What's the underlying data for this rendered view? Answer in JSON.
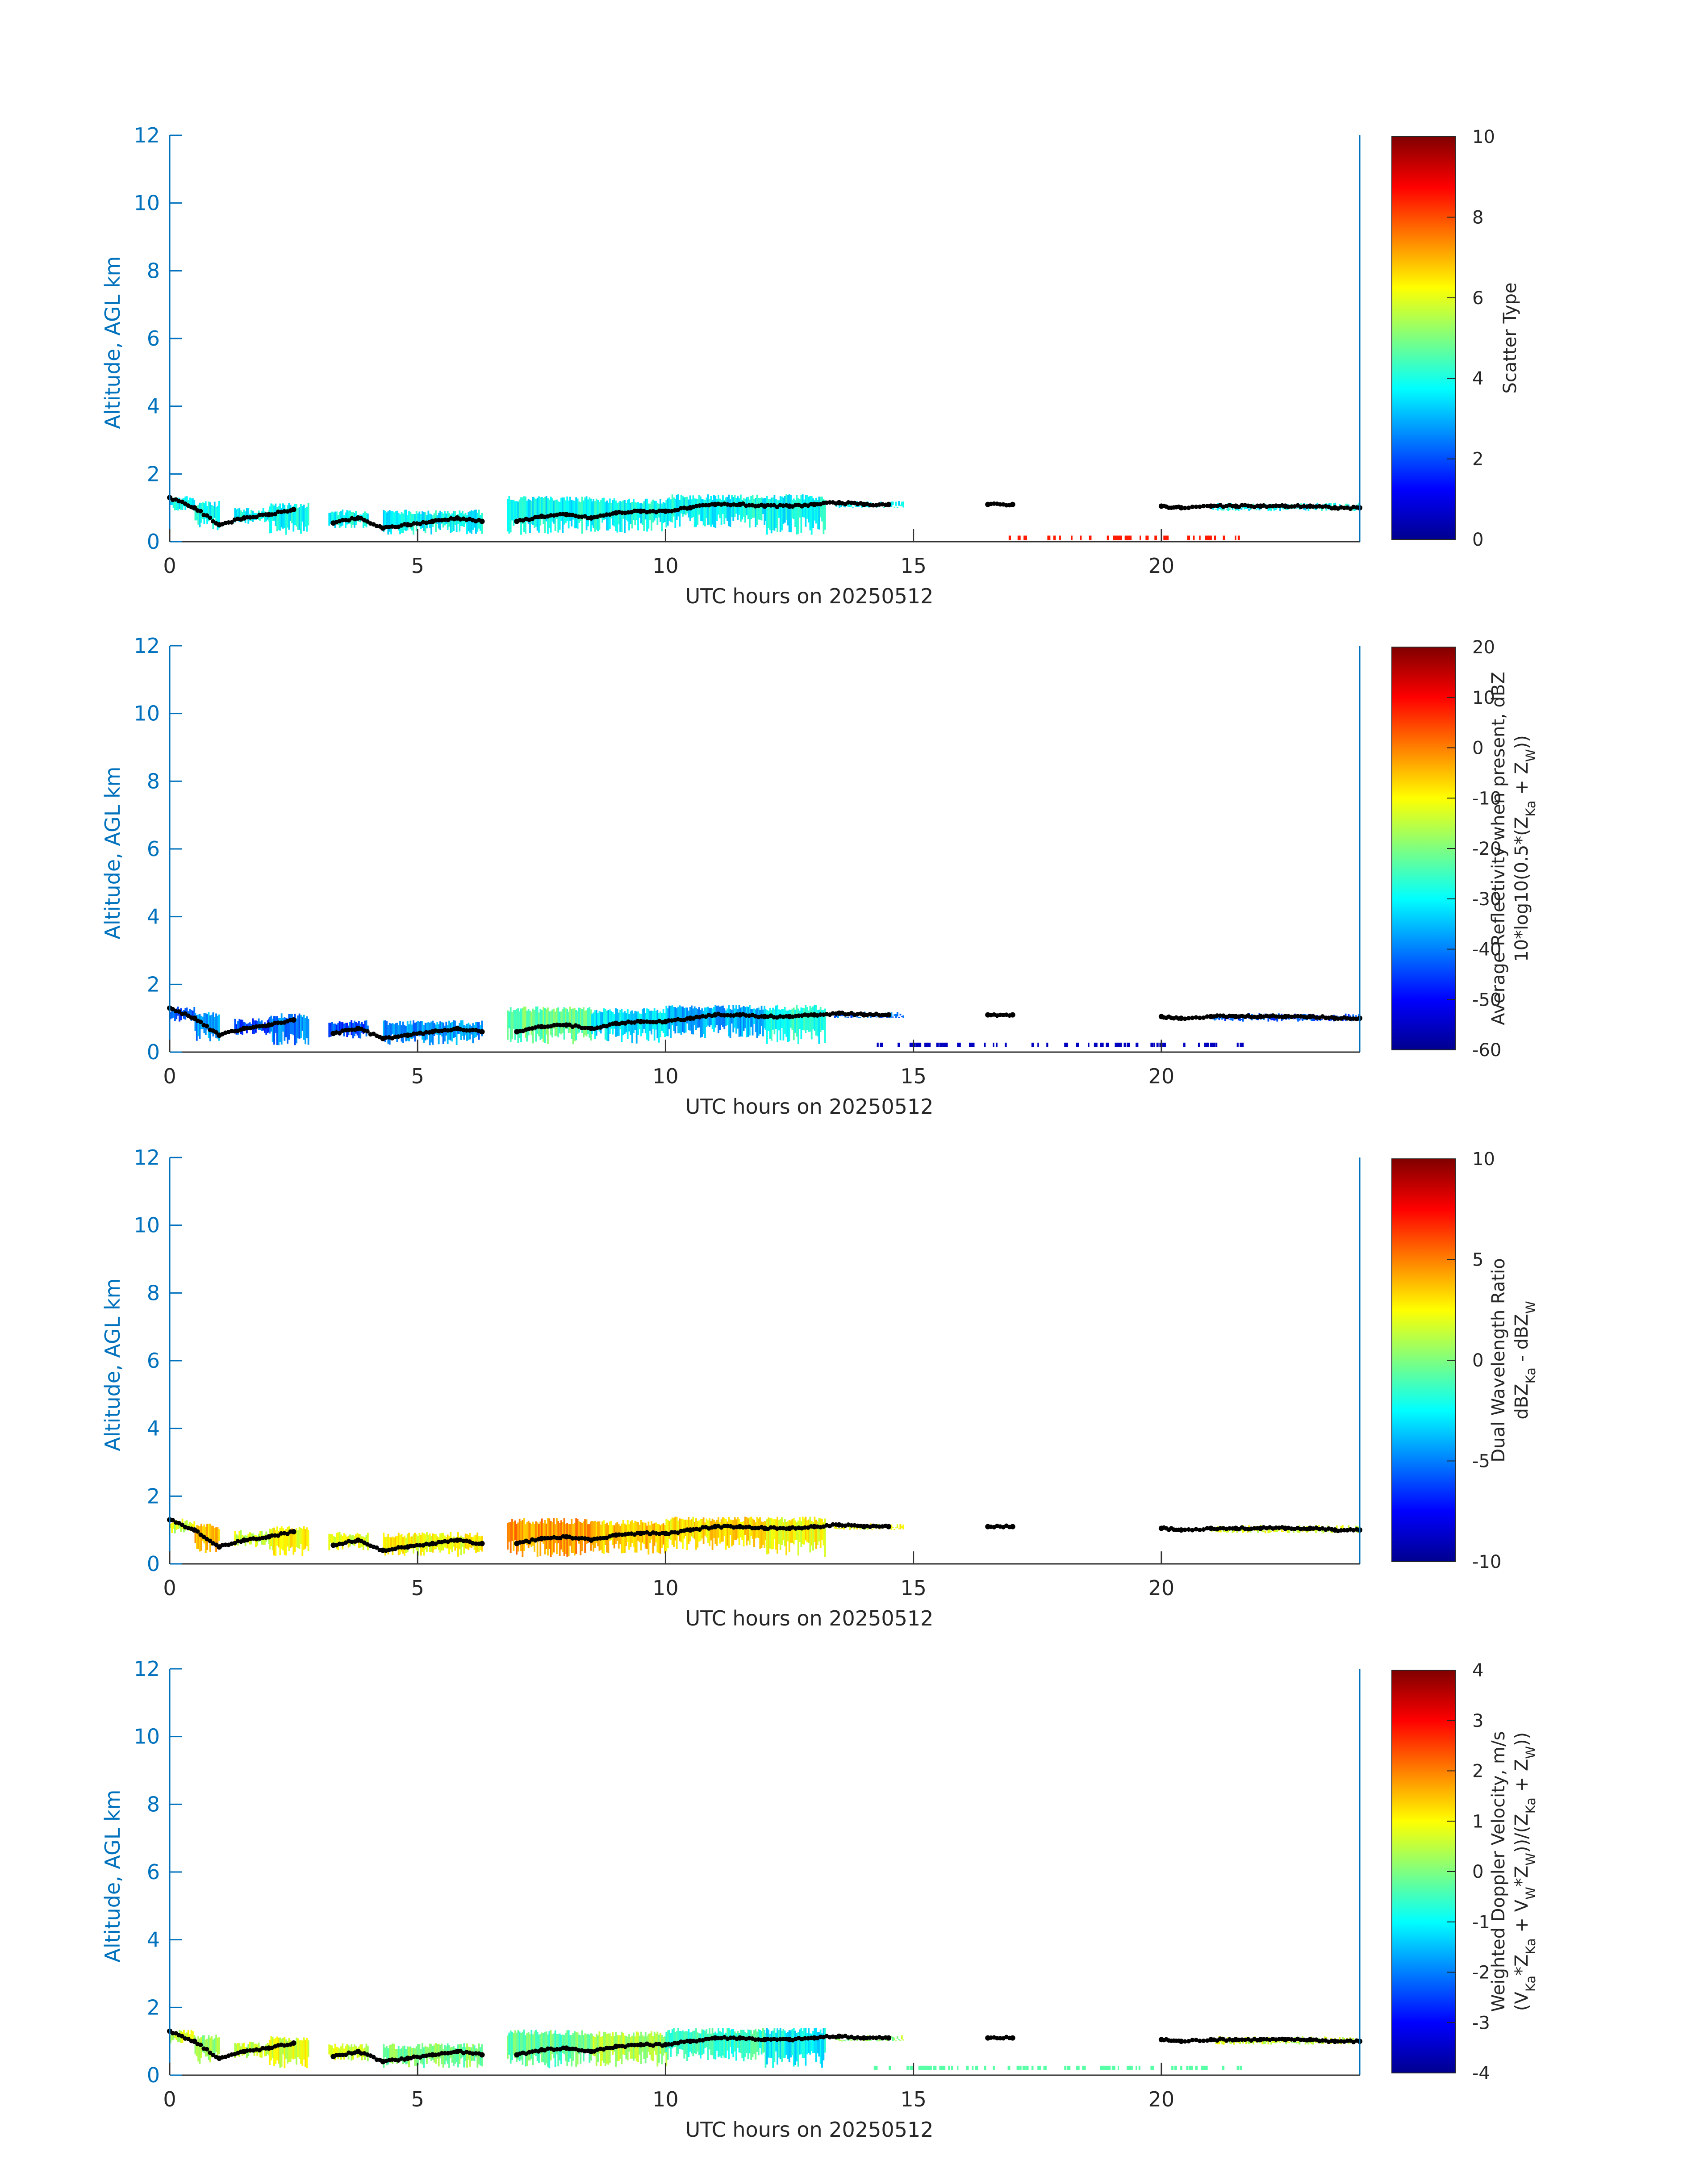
{
  "figure": {
    "xlabel": "UTC hours on 20250512",
    "ylabel": "Altitude, AGL km"
  },
  "chart_data": [
    {
      "type": "heatmap",
      "title": "",
      "xlabel": "UTC hours on 20250512",
      "ylabel": "Altitude, AGL km",
      "xlim": [
        0,
        24
      ],
      "ylim": [
        0,
        12
      ],
      "xticks": [
        0,
        5,
        10,
        15,
        20
      ],
      "yticks": [
        0,
        2,
        4,
        6,
        8,
        10,
        12
      ],
      "grid": false,
      "colorbar": {
        "label_lines": [
          "Scatter Type"
        ],
        "range": [
          0,
          10
        ],
        "ticks": [
          0,
          2,
          4,
          6,
          8,
          10
        ],
        "colormap": "jet"
      },
      "cloud_segments": [
        {
          "x": [
            0.0,
            0.5
          ],
          "top": 1.35,
          "base": 0.9,
          "value": 3.8
        },
        {
          "x": [
            0.5,
            1.0
          ],
          "top": 1.2,
          "base": 0.3,
          "value": 3.8
        },
        {
          "x": [
            1.3,
            2.0
          ],
          "top": 1.0,
          "base": 0.5,
          "value": 3.8
        },
        {
          "x": [
            2.0,
            2.8
          ],
          "top": 1.15,
          "base": 0.2,
          "value": 3.8
        },
        {
          "x": [
            3.2,
            4.0
          ],
          "top": 0.95,
          "base": 0.4,
          "value": 3.8
        },
        {
          "x": [
            4.3,
            6.3
          ],
          "top": 0.95,
          "base": 0.2,
          "value": 3.8
        },
        {
          "x": [
            6.8,
            8.5
          ],
          "top": 1.35,
          "base": 0.2,
          "value": 3.8
        },
        {
          "x": [
            8.5,
            10.0
          ],
          "top": 1.3,
          "base": 0.25,
          "value": 3.8
        },
        {
          "x": [
            10.0,
            12.0
          ],
          "top": 1.4,
          "base": 0.4,
          "value": 3.8
        },
        {
          "x": [
            12.0,
            13.2
          ],
          "top": 1.4,
          "base": 0.2,
          "value": 3.8
        },
        {
          "x": [
            13.4,
            14.8
          ],
          "top": 1.2,
          "base": 1.0,
          "value": 3.8
        },
        {
          "x": [
            21.0,
            24.0
          ],
          "top": 1.15,
          "base": 0.9,
          "value": 3.8
        }
      ],
      "surface_clutter": {
        "x": [
          16.8,
          21.6
        ],
        "altitude": 0.1,
        "value": 8.5
      },
      "cloud_base_points": {
        "x": [
          0.0,
          0.5,
          1.0,
          1.5,
          2.0,
          2.5,
          3.3,
          3.8,
          4.3,
          4.8,
          5.3,
          5.8,
          6.3,
          7.0,
          7.5,
          8.0,
          8.5,
          9.0,
          9.5,
          10.0,
          10.5,
          11.0,
          11.5,
          12.0,
          12.5,
          13.0,
          13.5,
          14.0,
          14.5,
          16.5,
          17.0,
          20.0,
          20.4,
          21.0,
          21.5,
          22.0,
          22.5,
          23.0,
          23.5,
          24.0
        ],
        "altitude": [
          1.3,
          1.0,
          0.5,
          0.7,
          0.8,
          0.95,
          0.55,
          0.7,
          0.4,
          0.5,
          0.6,
          0.7,
          0.6,
          0.6,
          0.75,
          0.8,
          0.7,
          0.85,
          0.9,
          0.9,
          1.0,
          1.1,
          1.1,
          1.05,
          1.05,
          1.1,
          1.15,
          1.1,
          1.1,
          1.1,
          1.1,
          1.05,
          1.0,
          1.05,
          1.05,
          1.05,
          1.05,
          1.05,
          1.0,
          1.0
        ]
      }
    },
    {
      "type": "heatmap",
      "title": "",
      "xlabel": "UTC hours on 20250512",
      "ylabel": "Altitude, AGL km",
      "xlim": [
        0,
        24
      ],
      "ylim": [
        0,
        12
      ],
      "xticks": [
        0,
        5,
        10,
        15,
        20
      ],
      "yticks": [
        0,
        2,
        4,
        6,
        8,
        10,
        12
      ],
      "grid": false,
      "colorbar": {
        "label_lines": [
          "Average Reflectivity when present, dBZ",
          "10*log10(0.5*(Z_Ka + Z_W))"
        ],
        "range": [
          -60,
          20
        ],
        "ticks": [
          -60,
          -50,
          -40,
          -30,
          -20,
          -10,
          0,
          10,
          20
        ],
        "colormap": "jet"
      },
      "cloud_segments": [
        {
          "x": [
            0.0,
            0.5
          ],
          "top": 1.35,
          "base": 0.9,
          "value": -42
        },
        {
          "x": [
            0.5,
            1.0
          ],
          "top": 1.2,
          "base": 0.3,
          "value": -38
        },
        {
          "x": [
            1.3,
            2.0
          ],
          "top": 1.0,
          "base": 0.5,
          "value": -44
        },
        {
          "x": [
            2.0,
            2.8
          ],
          "top": 1.15,
          "base": 0.2,
          "value": -40
        },
        {
          "x": [
            3.2,
            4.0
          ],
          "top": 0.95,
          "base": 0.4,
          "value": -44
        },
        {
          "x": [
            4.3,
            6.3
          ],
          "top": 0.95,
          "base": 0.2,
          "value": -38
        },
        {
          "x": [
            6.8,
            8.5
          ],
          "top": 1.35,
          "base": 0.2,
          "value": -22
        },
        {
          "x": [
            8.5,
            10.0
          ],
          "top": 1.3,
          "base": 0.25,
          "value": -32
        },
        {
          "x": [
            10.0,
            12.0
          ],
          "top": 1.4,
          "base": 0.4,
          "value": -36
        },
        {
          "x": [
            12.0,
            13.2
          ],
          "top": 1.4,
          "base": 0.2,
          "value": -28
        },
        {
          "x": [
            13.4,
            14.8
          ],
          "top": 1.2,
          "base": 1.0,
          "value": -42
        },
        {
          "x": [
            21.0,
            24.0
          ],
          "top": 1.15,
          "base": 0.9,
          "value": -44
        }
      ],
      "surface_clutter": {
        "x": [
          14.2,
          21.6
        ],
        "altitude": 0.2,
        "value": -55
      },
      "cloud_base_points": {
        "x": [
          0.0,
          0.5,
          1.0,
          1.5,
          2.0,
          2.5,
          3.3,
          3.8,
          4.3,
          4.8,
          5.3,
          5.8,
          6.3,
          7.0,
          7.5,
          8.0,
          8.5,
          9.0,
          9.5,
          10.0,
          10.5,
          11.0,
          11.5,
          12.0,
          12.5,
          13.0,
          13.5,
          14.0,
          14.5,
          16.5,
          17.0,
          20.0,
          20.4,
          21.0,
          21.5,
          22.0,
          22.5,
          23.0,
          23.5,
          24.0
        ],
        "altitude": [
          1.3,
          1.0,
          0.5,
          0.7,
          0.8,
          0.95,
          0.55,
          0.7,
          0.4,
          0.5,
          0.6,
          0.7,
          0.6,
          0.6,
          0.75,
          0.8,
          0.7,
          0.85,
          0.9,
          0.9,
          1.0,
          1.1,
          1.1,
          1.05,
          1.05,
          1.1,
          1.15,
          1.1,
          1.1,
          1.1,
          1.1,
          1.05,
          1.0,
          1.05,
          1.05,
          1.05,
          1.05,
          1.05,
          1.0,
          1.0
        ]
      }
    },
    {
      "type": "heatmap",
      "title": "",
      "xlabel": "UTC hours on 20250512",
      "ylabel": "Altitude, AGL km",
      "xlim": [
        0,
        24
      ],
      "ylim": [
        0,
        12
      ],
      "xticks": [
        0,
        5,
        10,
        15,
        20
      ],
      "yticks": [
        0,
        2,
        4,
        6,
        8,
        10,
        12
      ],
      "grid": false,
      "colorbar": {
        "label_lines": [
          "Dual Wavelength Ratio",
          "dBZ_Ka - dBZ_W"
        ],
        "range": [
          -10,
          10
        ],
        "ticks": [
          -10,
          -5,
          0,
          5,
          10
        ],
        "colormap": "jet"
      },
      "cloud_segments": [
        {
          "x": [
            0.0,
            0.5
          ],
          "top": 1.35,
          "base": 0.9,
          "value": 1.5
        },
        {
          "x": [
            0.5,
            1.0
          ],
          "top": 1.2,
          "base": 0.3,
          "value": 3.5
        },
        {
          "x": [
            1.3,
            2.0
          ],
          "top": 1.0,
          "base": 0.5,
          "value": 1.5
        },
        {
          "x": [
            2.0,
            2.8
          ],
          "top": 1.15,
          "base": 0.2,
          "value": 2.5
        },
        {
          "x": [
            3.2,
            4.0
          ],
          "top": 0.95,
          "base": 0.4,
          "value": 2.0
        },
        {
          "x": [
            4.3,
            6.3
          ],
          "top": 0.95,
          "base": 0.2,
          "value": 2.5
        },
        {
          "x": [
            6.8,
            8.5
          ],
          "top": 1.35,
          "base": 0.2,
          "value": 4.5
        },
        {
          "x": [
            8.5,
            10.0
          ],
          "top": 1.3,
          "base": 0.25,
          "value": 3.5
        },
        {
          "x": [
            10.0,
            12.0
          ],
          "top": 1.4,
          "base": 0.4,
          "value": 3.0
        },
        {
          "x": [
            12.0,
            13.2
          ],
          "top": 1.4,
          "base": 0.2,
          "value": 2.5
        },
        {
          "x": [
            13.4,
            14.8
          ],
          "top": 1.2,
          "base": 1.0,
          "value": 2.0
        },
        {
          "x": [
            21.0,
            24.0
          ],
          "top": 1.15,
          "base": 0.9,
          "value": 2.0
        }
      ],
      "cloud_base_points": {
        "x": [
          0.0,
          0.5,
          1.0,
          1.5,
          2.0,
          2.5,
          3.3,
          3.8,
          4.3,
          4.8,
          5.3,
          5.8,
          6.3,
          7.0,
          7.5,
          8.0,
          8.5,
          9.0,
          9.5,
          10.0,
          10.5,
          11.0,
          11.5,
          12.0,
          12.5,
          13.0,
          13.5,
          14.0,
          14.5,
          16.5,
          17.0,
          20.0,
          20.4,
          21.0,
          21.5,
          22.0,
          22.5,
          23.0,
          23.5,
          24.0
        ],
        "altitude": [
          1.3,
          1.0,
          0.5,
          0.7,
          0.8,
          0.95,
          0.55,
          0.7,
          0.4,
          0.5,
          0.6,
          0.7,
          0.6,
          0.6,
          0.75,
          0.8,
          0.7,
          0.85,
          0.9,
          0.9,
          1.0,
          1.1,
          1.1,
          1.05,
          1.05,
          1.1,
          1.15,
          1.1,
          1.1,
          1.1,
          1.1,
          1.05,
          1.0,
          1.05,
          1.05,
          1.05,
          1.05,
          1.05,
          1.0,
          1.0
        ]
      }
    },
    {
      "type": "heatmap",
      "title": "",
      "xlabel": "UTC hours on 20250512",
      "ylabel": "Altitude, AGL km",
      "xlim": [
        0,
        24
      ],
      "ylim": [
        0,
        12
      ],
      "xticks": [
        0,
        5,
        10,
        15,
        20
      ],
      "yticks": [
        0,
        2,
        4,
        6,
        8,
        10,
        12
      ],
      "grid": false,
      "colorbar": {
        "label_lines": [
          "Weighted Doppler Velocity, m/s",
          "(V_Ka*Z_Ka + V_W*Z_W))/(Z_Ka + Z_W))"
        ],
        "range": [
          -4,
          4
        ],
        "ticks": [
          -4,
          -3,
          -2,
          -1,
          0,
          1,
          2,
          3,
          4
        ],
        "colormap": "jet"
      },
      "cloud_segments": [
        {
          "x": [
            0.0,
            0.5
          ],
          "top": 1.35,
          "base": 0.9,
          "value": 0.6
        },
        {
          "x": [
            0.5,
            1.0
          ],
          "top": 1.2,
          "base": 0.3,
          "value": 0.2
        },
        {
          "x": [
            1.3,
            2.0
          ],
          "top": 1.0,
          "base": 0.5,
          "value": 0.6
        },
        {
          "x": [
            2.0,
            2.8
          ],
          "top": 1.15,
          "base": 0.2,
          "value": 0.8
        },
        {
          "x": [
            3.2,
            4.0
          ],
          "top": 0.95,
          "base": 0.4,
          "value": 0.6
        },
        {
          "x": [
            4.3,
            6.3
          ],
          "top": 0.95,
          "base": 0.2,
          "value": 0.0
        },
        {
          "x": [
            6.8,
            8.5
          ],
          "top": 1.35,
          "base": 0.2,
          "value": -0.2
        },
        {
          "x": [
            8.5,
            10.0
          ],
          "top": 1.3,
          "base": 0.25,
          "value": 0.4
        },
        {
          "x": [
            10.0,
            12.0
          ],
          "top": 1.4,
          "base": 0.4,
          "value": -0.6
        },
        {
          "x": [
            12.0,
            13.2
          ],
          "top": 1.4,
          "base": 0.2,
          "value": -1.0
        },
        {
          "x": [
            13.4,
            14.8
          ],
          "top": 1.2,
          "base": 1.0,
          "value": 0.2
        },
        {
          "x": [
            21.0,
            24.0
          ],
          "top": 1.15,
          "base": 0.9,
          "value": 0.6
        }
      ],
      "surface_clutter": {
        "x": [
          14.2,
          21.6
        ],
        "altitude": 0.2,
        "value": -0.3
      },
      "cloud_base_points": {
        "x": [
          0.0,
          0.5,
          1.0,
          1.5,
          2.0,
          2.5,
          3.3,
          3.8,
          4.3,
          4.8,
          5.3,
          5.8,
          6.3,
          7.0,
          7.5,
          8.0,
          8.5,
          9.0,
          9.5,
          10.0,
          10.5,
          11.0,
          11.5,
          12.0,
          12.5,
          13.0,
          13.5,
          14.0,
          14.5,
          16.5,
          17.0,
          20.0,
          20.4,
          21.0,
          21.5,
          22.0,
          22.5,
          23.0,
          23.5,
          24.0
        ],
        "altitude": [
          1.3,
          1.0,
          0.5,
          0.7,
          0.8,
          0.95,
          0.55,
          0.7,
          0.4,
          0.5,
          0.6,
          0.7,
          0.6,
          0.6,
          0.75,
          0.8,
          0.7,
          0.85,
          0.9,
          0.9,
          1.0,
          1.1,
          1.1,
          1.05,
          1.05,
          1.1,
          1.15,
          1.1,
          1.1,
          1.1,
          1.1,
          1.05,
          1.0,
          1.05,
          1.05,
          1.05,
          1.05,
          1.05,
          1.0,
          1.0
        ]
      }
    }
  ]
}
